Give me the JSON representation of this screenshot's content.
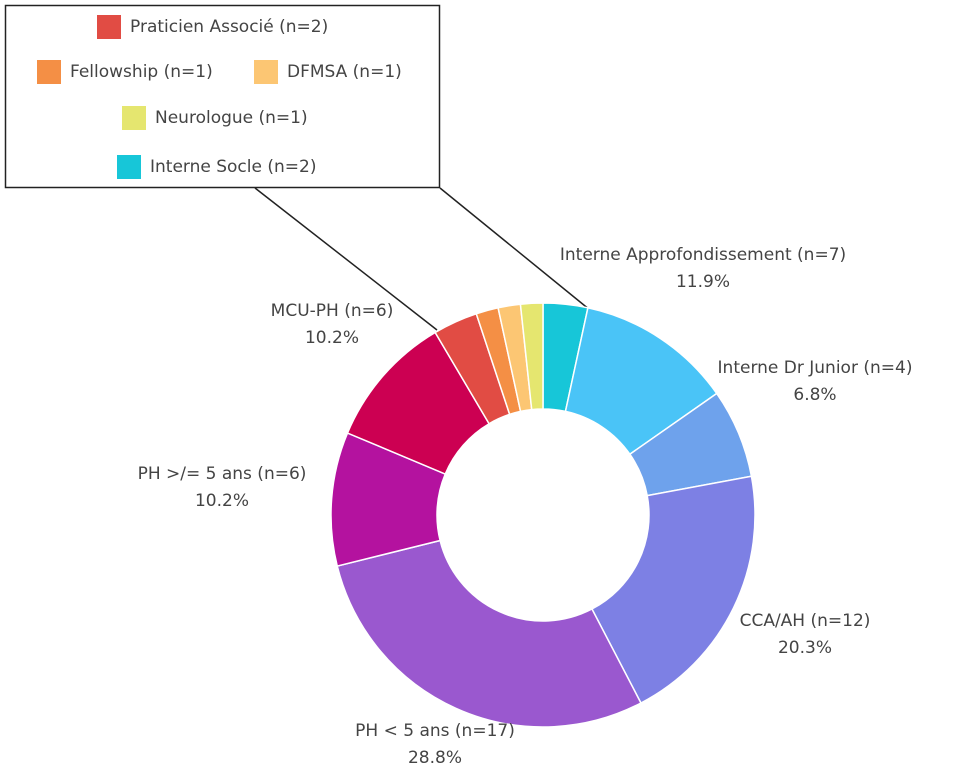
{
  "chart_data": {
    "type": "donut",
    "categories": [
      "Interne Socle (n=2)",
      "Interne Approfondissement (n=7)",
      "Interne Dr Junior (n=4)",
      "CCA/AH (n=12)",
      "PH < 5 ans (n=17)",
      "PH >/= 5 ans (n=6)",
      "MCU-PH (n=6)",
      "Praticien Associé (n=2)",
      "Fellowship (n=1)",
      "DFMSA (n=1)",
      "Neurologue (n=1)"
    ],
    "values": [
      3.4,
      11.9,
      6.8,
      20.3,
      28.8,
      10.2,
      10.2,
      3.4,
      1.7,
      1.7,
      1.7
    ],
    "value_labels": [
      null,
      "11.9%",
      "6.8%",
      "20.3%",
      "28.8%",
      "10.2%",
      "10.2%",
      null,
      null,
      null,
      null
    ],
    "colors": [
      "#17c6d8",
      "#4ac4f7",
      "#6ea2ec",
      "#7d80e4",
      "#9a58cf",
      "#b4129f",
      "#cc0052",
      "#e14c44",
      "#f48f45",
      "#fcc673",
      "#e5e66f"
    ]
  }
}
